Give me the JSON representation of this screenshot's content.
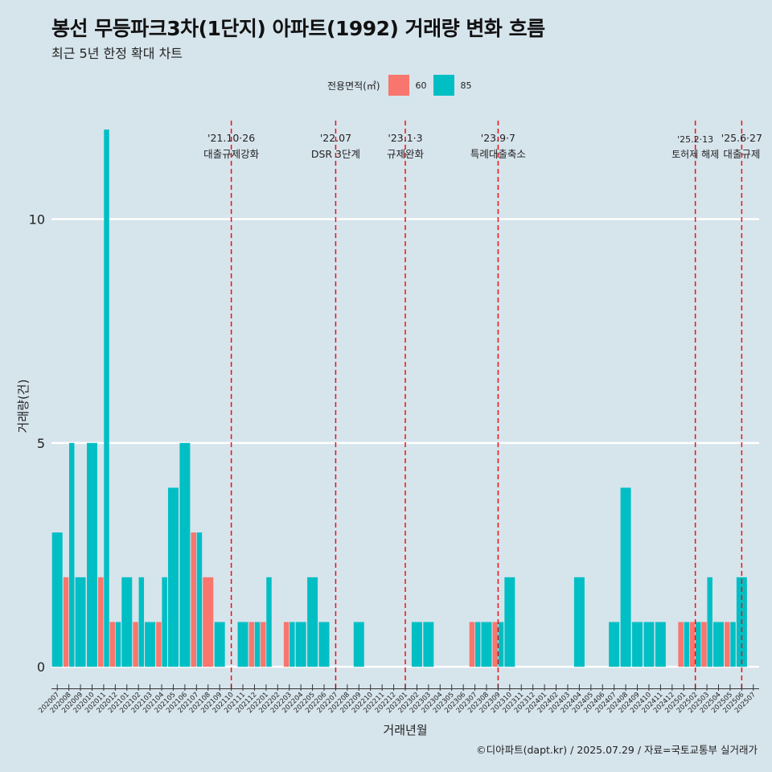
{
  "header": {
    "title": "봉선 무등파크3차(1단지) 아파트(1992) 거래량 변화 흐름",
    "subtitle": "최근 5년 한정 확대 차트"
  },
  "legend": {
    "title": "전용면적(㎡)",
    "items": [
      {
        "label": "60",
        "color": "#f8766d"
      },
      {
        "label": "85",
        "color": "#00bfc4"
      }
    ]
  },
  "caption": "©디아파트(dapt.kr) / 2025.07.29 / 자료=국토교통부 실거래가",
  "chart_data": {
    "type": "bar",
    "stacked": true,
    "title": "봉선 무등파크3차(1단지) 아파트(1992) 거래량 변화 흐름",
    "xlabel": "거래년월",
    "ylabel": "거래량(건)",
    "ylim": [
      -0.5,
      12.2
    ],
    "yticks": [
      0,
      5,
      10
    ],
    "grid": "horizontal",
    "legend_position": "top",
    "categories": [
      "202007",
      "202008",
      "202009",
      "202010",
      "202011",
      "202012",
      "202101",
      "202102",
      "202103",
      "202104",
      "202105",
      "202106",
      "202107",
      "202108",
      "202109",
      "202110",
      "202111",
      "202112",
      "202201",
      "202202",
      "202203",
      "202204",
      "202205",
      "202206",
      "202207",
      "202208",
      "202209",
      "202210",
      "202211",
      "202212",
      "202301",
      "202302",
      "202303",
      "202304",
      "202305",
      "202306",
      "202307",
      "202308",
      "202309",
      "202310",
      "202311",
      "202312",
      "202401",
      "202402",
      "202403",
      "202404",
      "202405",
      "202406",
      "202407",
      "202408",
      "202409",
      "202410",
      "202411",
      "202412",
      "202501",
      "202502",
      "202503",
      "202504",
      "202505",
      "202506",
      "202507"
    ],
    "bars": [
      {
        "month": "202007",
        "offset": 0,
        "area": "85",
        "value": 3
      },
      {
        "month": "202008",
        "offset": -0.25,
        "area": "60",
        "value": 2
      },
      {
        "month": "202008",
        "offset": 0.25,
        "area": "85",
        "value": 5
      },
      {
        "month": "202009",
        "offset": 0,
        "area": "85",
        "value": 2
      },
      {
        "month": "202010",
        "offset": 0,
        "area": "85",
        "value": 5
      },
      {
        "month": "202011",
        "offset": -0.25,
        "area": "60",
        "value": 2
      },
      {
        "month": "202011",
        "offset": 0.25,
        "area": "85",
        "value": 12
      },
      {
        "month": "202012",
        "offset": -0.25,
        "area": "60",
        "value": 1
      },
      {
        "month": "202012",
        "offset": 0.25,
        "area": "85",
        "value": 1
      },
      {
        "month": "202101",
        "offset": 0,
        "area": "85",
        "value": 2
      },
      {
        "month": "202102",
        "offset": -0.25,
        "area": "60",
        "value": 1
      },
      {
        "month": "202102",
        "offset": 0.25,
        "area": "85",
        "value": 2
      },
      {
        "month": "202103",
        "offset": 0,
        "area": "85",
        "value": 1
      },
      {
        "month": "202104",
        "offset": -0.25,
        "area": "60",
        "value": 1
      },
      {
        "month": "202104",
        "offset": 0.25,
        "area": "85",
        "value": 2
      },
      {
        "month": "202105",
        "offset": 0,
        "area": "85",
        "value": 4
      },
      {
        "month": "202106",
        "offset": 0,
        "area": "85",
        "value": 5
      },
      {
        "month": "202107",
        "offset": -0.25,
        "area": "60",
        "value": 3
      },
      {
        "month": "202107",
        "offset": 0.25,
        "area": "85",
        "value": 3
      },
      {
        "month": "202108",
        "offset": 0,
        "area": "60",
        "value": 2
      },
      {
        "month": "202109",
        "offset": 0,
        "area": "85",
        "value": 1
      },
      {
        "month": "202111",
        "offset": 0,
        "area": "85",
        "value": 1
      },
      {
        "month": "202112",
        "offset": -0.25,
        "area": "60",
        "value": 1
      },
      {
        "month": "202112",
        "offset": 0.25,
        "area": "85",
        "value": 1
      },
      {
        "month": "202201",
        "offset": -0.25,
        "area": "60",
        "value": 1
      },
      {
        "month": "202201",
        "offset": 0.25,
        "area": "85",
        "value": 2
      },
      {
        "month": "202203",
        "offset": -0.25,
        "area": "60",
        "value": 1
      },
      {
        "month": "202203",
        "offset": 0.25,
        "area": "85",
        "value": 1
      },
      {
        "month": "202204",
        "offset": 0,
        "area": "85",
        "value": 1
      },
      {
        "month": "202205",
        "offset": 0,
        "area": "85",
        "value": 2
      },
      {
        "month": "202206",
        "offset": 0,
        "area": "85",
        "value": 1
      },
      {
        "month": "202209",
        "offset": 0,
        "area": "85",
        "value": 1
      },
      {
        "month": "202302",
        "offset": 0,
        "area": "85",
        "value": 1
      },
      {
        "month": "202303",
        "offset": 0,
        "area": "85",
        "value": 1
      },
      {
        "month": "202307",
        "offset": -0.25,
        "area": "60",
        "value": 1
      },
      {
        "month": "202307",
        "offset": 0.25,
        "area": "85",
        "value": 1
      },
      {
        "month": "202308",
        "offset": 0,
        "area": "85",
        "value": 1
      },
      {
        "month": "202309",
        "offset": -0.25,
        "area": "60",
        "value": 1
      },
      {
        "month": "202309",
        "offset": 0.25,
        "area": "85",
        "value": 1
      },
      {
        "month": "202310",
        "offset": 0,
        "area": "85",
        "value": 2
      },
      {
        "month": "202404",
        "offset": 0,
        "area": "85",
        "value": 2
      },
      {
        "month": "202407",
        "offset": 0,
        "area": "85",
        "value": 1
      },
      {
        "month": "202408",
        "offset": 0,
        "area": "85",
        "value": 4
      },
      {
        "month": "202409",
        "offset": 0,
        "area": "85",
        "value": 1
      },
      {
        "month": "202410",
        "offset": 0,
        "area": "85",
        "value": 1
      },
      {
        "month": "202411",
        "offset": 0,
        "area": "85",
        "value": 1
      },
      {
        "month": "202501",
        "offset": -0.25,
        "area": "60",
        "value": 1
      },
      {
        "month": "202501",
        "offset": 0.25,
        "area": "85",
        "value": 1
      },
      {
        "month": "202502",
        "offset": -0.25,
        "area": "60",
        "value": 1
      },
      {
        "month": "202502",
        "offset": 0.25,
        "area": "85",
        "value": 1
      },
      {
        "month": "202503",
        "offset": -0.25,
        "area": "60",
        "value": 1
      },
      {
        "month": "202503",
        "offset": 0.25,
        "area": "85",
        "value": 2
      },
      {
        "month": "202504",
        "offset": 0,
        "area": "85",
        "value": 1
      },
      {
        "month": "202505",
        "offset": -0.25,
        "area": "60",
        "value": 1
      },
      {
        "month": "202505",
        "offset": 0.25,
        "area": "85",
        "value": 1
      },
      {
        "month": "202506",
        "offset": 0,
        "area": "85",
        "value": 2
      }
    ],
    "events": [
      {
        "month": "202110",
        "date": "'21.10·26",
        "label": "대출규제강화"
      },
      {
        "month": "202207",
        "date": "'22.07",
        "label": "DSR 3단계"
      },
      {
        "month": "202301",
        "date": "'23.1·3",
        "label": "규제완화"
      },
      {
        "month": "202309",
        "date": "'23.9·7",
        "label": "특례대출축소"
      },
      {
        "month": "202502",
        "date": "'25.2·13",
        "label": "토허제 해제"
      },
      {
        "month": "202506",
        "date": "'25.6·27",
        "label": "대출규제"
      }
    ]
  }
}
